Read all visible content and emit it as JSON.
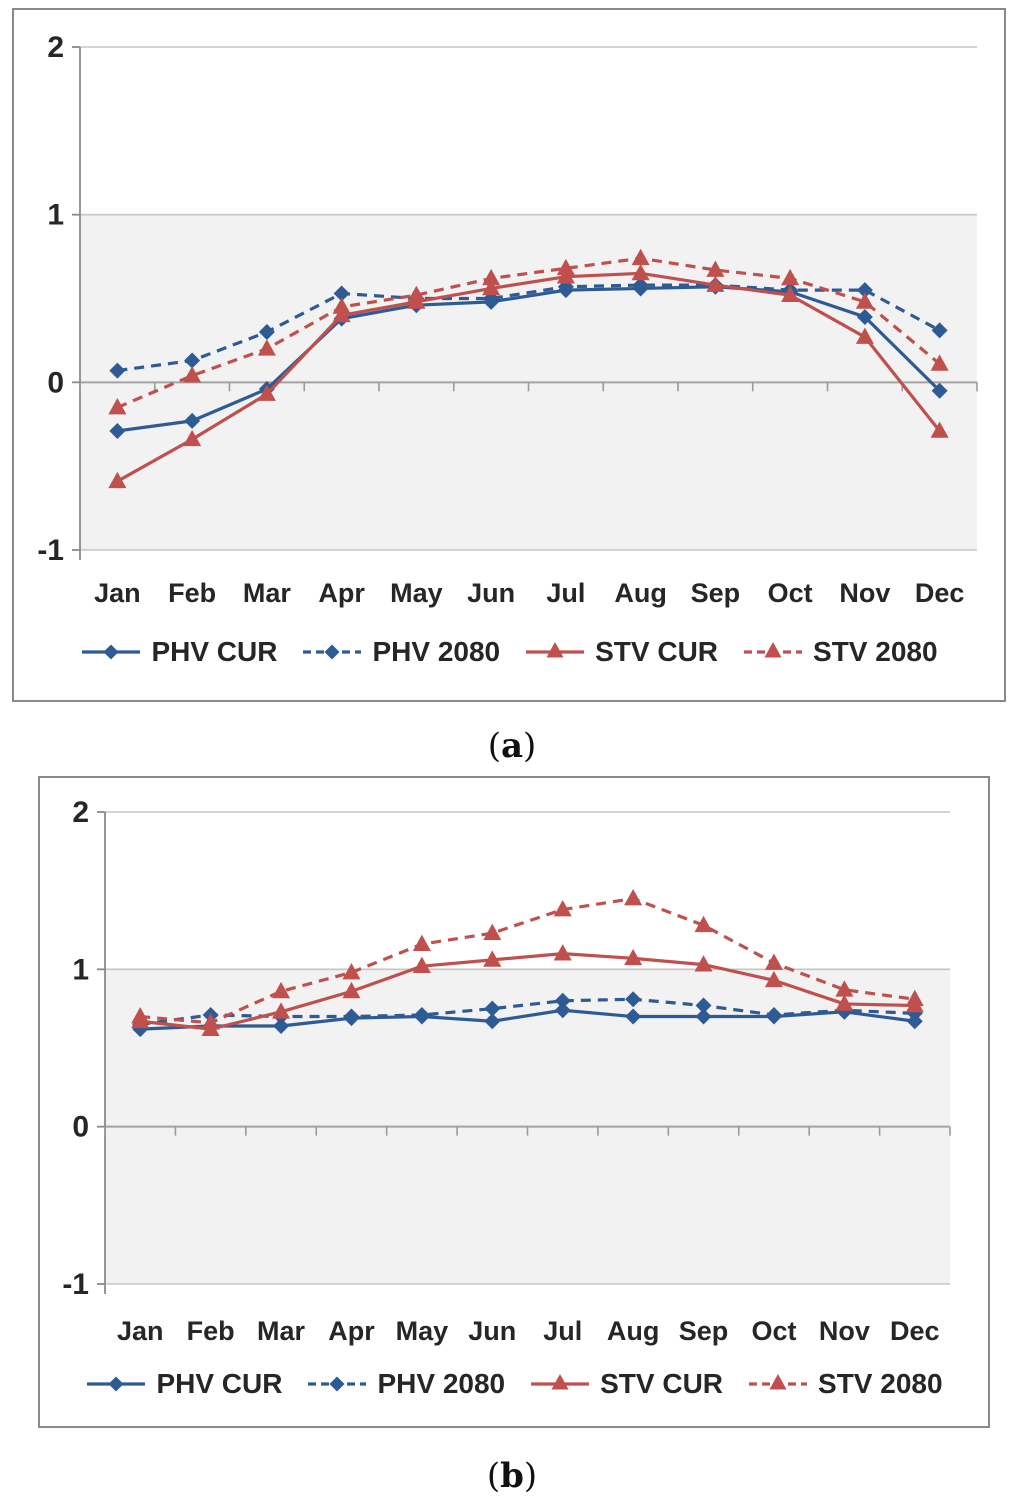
{
  "figure": {
    "captions": {
      "a": {
        "open": "(",
        "letter": "a",
        "close": ")"
      },
      "b": {
        "open": "(",
        "letter": "b",
        "close": ")"
      }
    }
  },
  "colors": {
    "phv_blue": "#2E5B94",
    "stv_red": "#C0504D",
    "band_gray": "#F2F2F2",
    "gridline": "#C6C6C6",
    "zero_line": "#A3A3A3",
    "axis_line": "#8A8A8A",
    "tick_mark": "#9B9B9B",
    "text": "#262626",
    "panel_border": "#8A8A8A"
  },
  "chart_data": [
    {
      "id": "a",
      "type": "line",
      "title": "",
      "xlabel": "",
      "ylabel": "",
      "ylim": [
        -1,
        2
      ],
      "yticks": [
        2,
        1,
        0,
        -1
      ],
      "shaded_band": [
        -1,
        1
      ],
      "grid": true,
      "legend_position": "bottom",
      "categories": [
        "Jan",
        "Feb",
        "Mar",
        "Apr",
        "May",
        "Jun",
        "Jul",
        "Aug",
        "Sep",
        "Oct",
        "Nov",
        "Dec"
      ],
      "series": [
        {
          "name": "PHV CUR",
          "color": "#2E5B94",
          "style": "solid",
          "marker": "diamond",
          "values": [
            -0.29,
            -0.23,
            -0.04,
            0.38,
            0.46,
            0.48,
            0.55,
            0.56,
            0.57,
            0.54,
            0.39,
            -0.05
          ]
        },
        {
          "name": "PHV 2080",
          "color": "#2E5B94",
          "style": "dashed",
          "marker": "diamond",
          "values": [
            0.07,
            0.13,
            0.3,
            0.53,
            0.5,
            0.5,
            0.57,
            0.58,
            0.58,
            0.55,
            0.55,
            0.31
          ]
        },
        {
          "name": "STV CUR",
          "color": "#C0504D",
          "style": "solid",
          "marker": "triangle",
          "values": [
            -0.59,
            -0.34,
            -0.07,
            0.4,
            0.48,
            0.56,
            0.63,
            0.65,
            0.58,
            0.52,
            0.27,
            -0.29
          ]
        },
        {
          "name": "STV 2080",
          "color": "#C0504D",
          "style": "dashed",
          "marker": "triangle",
          "values": [
            -0.15,
            0.04,
            0.2,
            0.45,
            0.52,
            0.62,
            0.68,
            0.74,
            0.67,
            0.62,
            0.48,
            0.11
          ]
        }
      ]
    },
    {
      "id": "b",
      "type": "line",
      "title": "",
      "xlabel": "",
      "ylabel": "",
      "ylim": [
        -1,
        2
      ],
      "yticks": [
        2,
        1,
        0,
        -1
      ],
      "shaded_band": [
        -1,
        1
      ],
      "grid": true,
      "legend_position": "bottom",
      "categories": [
        "Jan",
        "Feb",
        "Mar",
        "Apr",
        "May",
        "Jun",
        "Jul",
        "Aug",
        "Sep",
        "Oct",
        "Nov",
        "Dec"
      ],
      "series": [
        {
          "name": "PHV CUR",
          "color": "#2E5B94",
          "style": "solid",
          "marker": "diamond",
          "values": [
            0.62,
            0.64,
            0.64,
            0.69,
            0.7,
            0.67,
            0.74,
            0.7,
            0.7,
            0.7,
            0.73,
            0.67
          ]
        },
        {
          "name": "PHV 2080",
          "color": "#2E5B94",
          "style": "dashed",
          "marker": "diamond",
          "values": [
            0.65,
            0.71,
            0.7,
            0.7,
            0.71,
            0.75,
            0.8,
            0.81,
            0.77,
            0.71,
            0.74,
            0.72
          ]
        },
        {
          "name": "STV CUR",
          "color": "#C0504D",
          "style": "solid",
          "marker": "triangle",
          "values": [
            0.67,
            0.62,
            0.73,
            0.86,
            1.02,
            1.06,
            1.1,
            1.07,
            1.03,
            0.93,
            0.78,
            0.77
          ]
        },
        {
          "name": "STV 2080",
          "color": "#C0504D",
          "style": "dashed",
          "marker": "triangle",
          "values": [
            0.7,
            0.66,
            0.86,
            0.98,
            1.16,
            1.23,
            1.38,
            1.45,
            1.28,
            1.04,
            0.87,
            0.81
          ]
        }
      ]
    }
  ]
}
